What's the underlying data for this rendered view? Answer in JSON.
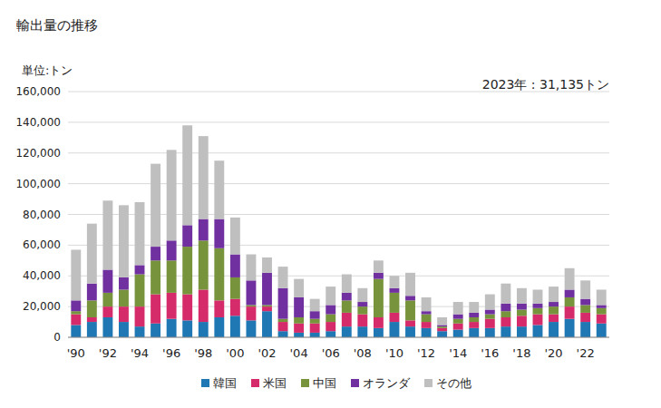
{
  "chart_data": {
    "type": "bar",
    "title": "輸出量の推移",
    "y_label": "単位:トン",
    "annotation": "2023年 : 31,135トン",
    "stacked": true,
    "grid": true,
    "legend": "bottom",
    "categories": [
      "'90",
      null,
      "'92",
      null,
      "'94",
      null,
      "'96",
      null,
      "'98",
      null,
      "'00",
      null,
      "'02",
      null,
      "'04",
      null,
      "'06",
      null,
      "'08",
      null,
      "'10",
      null,
      "'12",
      null,
      "'14",
      null,
      "'16",
      null,
      "'18",
      null,
      "'20",
      null,
      "'22",
      null
    ],
    "ylim": [
      0,
      160000
    ],
    "yticks": [
      0,
      {
        "value": 20000,
        "label": "20,000"
      },
      {
        "value": 40000,
        "label": "40,000"
      },
      {
        "value": 60000,
        "label": "60,000"
      },
      {
        "value": 80000,
        "label": "80,000"
      },
      {
        "value": 100000,
        "label": "100,000"
      },
      {
        "value": 120000,
        "label": "120,000"
      },
      {
        "value": 140000,
        "label": "140,000"
      },
      {
        "value": 160000,
        "label": "160,000"
      }
    ],
    "series": [
      {
        "name": "韓国",
        "color": "#1f77b4",
        "values": [
          8000,
          10000,
          13000,
          10000,
          7000,
          9000,
          12000,
          11000,
          10000,
          13000,
          14000,
          11000,
          17000,
          4000,
          3000,
          3000,
          4000,
          7000,
          7000,
          6000,
          10000,
          7000,
          6000,
          4000,
          5000,
          6000,
          6000,
          7000,
          7000,
          8000,
          10000,
          12000,
          10000,
          9000
        ]
      },
      {
        "name": "米国",
        "color": "#d62b6a",
        "values": [
          7000,
          3000,
          7000,
          10000,
          13000,
          19000,
          17000,
          17000,
          21000,
          11000,
          11000,
          9000,
          3000,
          6000,
          6000,
          6000,
          6000,
          9000,
          8000,
          7000,
          6000,
          4000,
          4000,
          2000,
          4000,
          4000,
          6000,
          6000,
          7000,
          7000,
          5000,
          8000,
          6000,
          6000
        ]
      },
      {
        "name": "中国",
        "color": "#77933c",
        "values": [
          2000,
          11000,
          9000,
          11000,
          21000,
          22000,
          21000,
          31000,
          32000,
          34000,
          14000,
          1000,
          1000,
          2000,
          4000,
          3000,
          5000,
          8000,
          5000,
          25000,
          13000,
          13000,
          5000,
          1000,
          3000,
          3000,
          3000,
          4000,
          4000,
          4000,
          5000,
          6000,
          5000,
          4000
        ]
      },
      {
        "name": "オランダ",
        "color": "#7030a0",
        "values": [
          7000,
          11000,
          15000,
          8000,
          6000,
          9000,
          13000,
          14000,
          14000,
          19000,
          15000,
          16000,
          21000,
          20000,
          13000,
          5000,
          6000,
          5000,
          3000,
          4000,
          3000,
          3000,
          2000,
          1000,
          3000,
          3000,
          3000,
          5000,
          4000,
          3000,
          3000,
          5000,
          4000,
          2000
        ]
      },
      {
        "name": "その他",
        "color": "#bfbfbf",
        "values": [
          33000,
          39000,
          45000,
          47000,
          41000,
          54000,
          59000,
          65000,
          54000,
          38000,
          24000,
          17000,
          10000,
          14000,
          12000,
          8000,
          12000,
          12000,
          9000,
          8000,
          8000,
          15000,
          9000,
          5000,
          8000,
          7000,
          10000,
          13000,
          10000,
          9000,
          10000,
          14000,
          12000,
          10000
        ]
      }
    ]
  }
}
